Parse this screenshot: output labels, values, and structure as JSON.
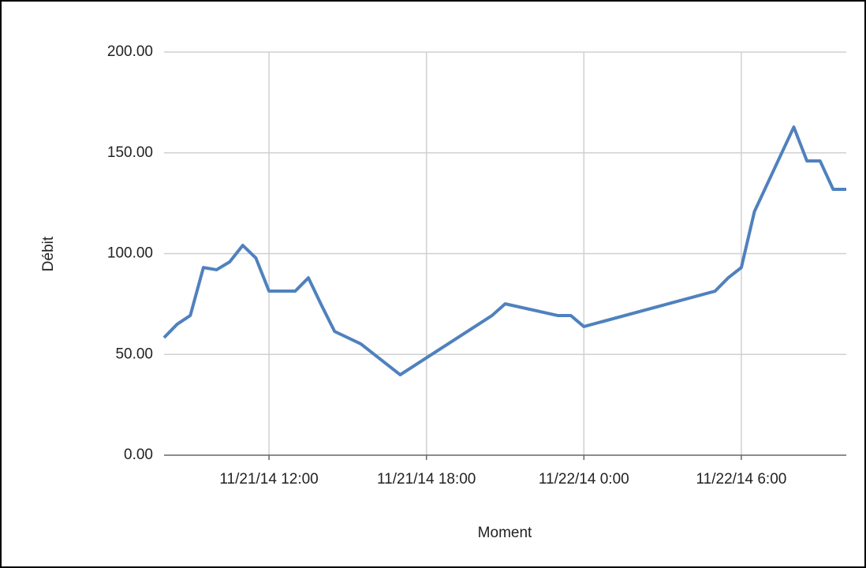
{
  "chart_data": {
    "type": "line",
    "x_label": "Moment",
    "y_label": "Débit",
    "x": [
      "11/21/14 8:00",
      "11/21/14 8:30",
      "11/21/14 9:00",
      "11/21/14 9:30",
      "11/21/14 10:00",
      "11/21/14 10:30",
      "11/21/14 11:00",
      "11/21/14 11:30",
      "11/21/14 12:00",
      "11/21/14 13:00",
      "11/21/14 13:30",
      "11/21/14 14:00",
      "11/21/14 14:30",
      "11/21/14 15:30",
      "11/21/14 17:00",
      "11/21/14 20:30",
      "11/21/14 21:00",
      "11/21/14 23:00",
      "11/21/14 23:30",
      "11/22/14 0:00",
      "11/22/14 5:00",
      "11/22/14 5:30",
      "11/22/14 6:00",
      "11/22/14 6:30",
      "11/22/14 8:00",
      "11/22/14 8:30",
      "11/22/14 9:00",
      "11/22/14 9:30",
      "11/22/14 10:00"
    ],
    "series": [
      {
        "name": "Débit",
        "color": "#4f81bd",
        "values": [
          58.3,
          65,
          69.3,
          93.1,
          92,
          95.9,
          104.1,
          97.8,
          81.4,
          81.4,
          88,
          74.4,
          61.4,
          55.2,
          39.9,
          69.3,
          75.1,
          69.3,
          69.3,
          63.8,
          81.4,
          88,
          93.1,
          120.9,
          162.8,
          146,
          146,
          131.9,
          131.9
        ]
      }
    ],
    "xlim": [
      "11/21/14 8:00",
      "11/22/14 10:00"
    ],
    "xticks": [
      "11/21/14 12:00",
      "11/21/14 18:00",
      "11/22/14 0:00",
      "11/22/14 6:00"
    ],
    "ylim": [
      0,
      200
    ],
    "yticks": [
      {
        "value": 0,
        "label": "0.00"
      },
      {
        "value": 50,
        "label": "50.00"
      },
      {
        "value": 100,
        "label": "100.00"
      },
      {
        "value": 150,
        "label": "150.00"
      },
      {
        "value": 200,
        "label": "200.00"
      }
    ],
    "grid": true
  }
}
